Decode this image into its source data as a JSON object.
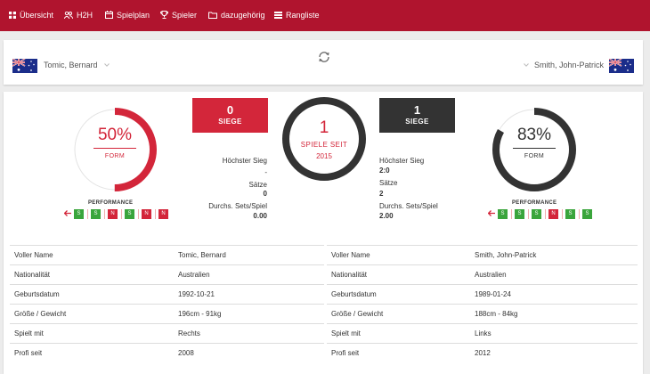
{
  "nav": [
    {
      "label": "Übersicht",
      "icon": "grid-icon"
    },
    {
      "label": "H2H",
      "icon": "users-icon"
    },
    {
      "label": "Spielplan",
      "icon": "calendar-icon"
    },
    {
      "label": "Spieler",
      "icon": "trophy-icon"
    },
    {
      "label": "dazugehörig",
      "icon": "folder-icon"
    },
    {
      "label": "Rangliste",
      "icon": "list-icon"
    }
  ],
  "players": {
    "left": {
      "name": "Tomic, Bernard",
      "flag": "australia-flag-icon"
    },
    "right": {
      "name": "Smith, John-Patrick",
      "flag": "australia-flag-icon"
    }
  },
  "form": {
    "left": {
      "value": "50%",
      "fraction": 0.5,
      "label": "FORM"
    },
    "right": {
      "value": "83%",
      "fraction": 0.83,
      "label": "FORM"
    }
  },
  "wins": {
    "left": {
      "count": "0",
      "label": "SIEGE"
    },
    "right": {
      "count": "1",
      "label": "SIEGE"
    }
  },
  "center": {
    "count": "1",
    "label": "SPIELE SEIT",
    "year": "2015"
  },
  "stats": {
    "left": {
      "highest_label": "Höchster Sieg",
      "highest_value": "-",
      "sets_label": "Sätze",
      "sets_value": "0",
      "avg_label": "Durchs. Sets/Spiel",
      "avg_value": "0.00"
    },
    "right": {
      "highest_label": "Höchster Sieg",
      "highest_value": "2:0",
      "sets_label": "Sätze",
      "sets_value": "2",
      "avg_label": "Durchs. Sets/Spiel",
      "avg_value": "2.00"
    }
  },
  "performance": {
    "title": "PERFORMANCE",
    "left": [
      "S",
      "S",
      "N",
      "S",
      "N",
      "N"
    ],
    "right": [
      "S",
      "S",
      "S",
      "N",
      "S",
      "S"
    ]
  },
  "details": {
    "left": [
      {
        "label": "Voller Name",
        "value": "Tomic, Bernard"
      },
      {
        "label": "Nationalität",
        "value": "Australien"
      },
      {
        "label": "Geburtsdatum",
        "value": "1992-10-21"
      },
      {
        "label": "Größe / Gewicht",
        "value": "196cm - 91kg"
      },
      {
        "label": "Spielt mit",
        "value": "Rechts"
      },
      {
        "label": "Profi seit",
        "value": "2008"
      }
    ],
    "right": [
      {
        "label": "Voller Name",
        "value": "Smith, John-Patrick"
      },
      {
        "label": "Nationalität",
        "value": "Australien"
      },
      {
        "label": "Geburtsdatum",
        "value": "1989-01-24"
      },
      {
        "label": "Größe / Gewicht",
        "value": "188cm - 84kg"
      },
      {
        "label": "Spielt mit",
        "value": "Links"
      },
      {
        "label": "Profi seit",
        "value": "2012"
      }
    ]
  },
  "colors": {
    "primary": "#b0142e",
    "accent_red": "#d3263a",
    "dark": "#333333",
    "win": "#3aa53c",
    "loss": "#d3263a"
  }
}
